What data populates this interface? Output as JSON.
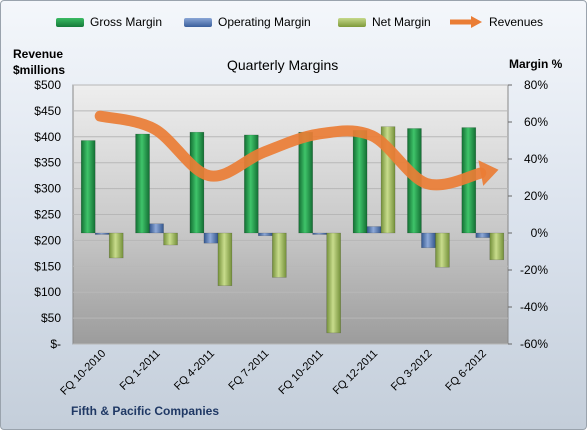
{
  "chart_data": {
    "type": "bar",
    "title": "Quarterly Margins",
    "categories": [
      "FQ 10-2010",
      "FQ 1-2011",
      "FQ 4-2011",
      "FQ 7-2011",
      "FQ 10-2011",
      "FQ 12-2011",
      "FQ 3-2012",
      "FQ 6-2012"
    ],
    "series": [
      {
        "name": "Gross Margin",
        "axis": "right",
        "color": "#1e8c45",
        "values": [
          50,
          53.5,
          54.5,
          53,
          54.5,
          55.5,
          56.5,
          57
        ]
      },
      {
        "name": "Operating Margin",
        "axis": "right",
        "color": "#4a6fb0",
        "values": [
          -0.5,
          5,
          -5.5,
          -1.5,
          -0.5,
          3.5,
          -8,
          -2.5
        ]
      },
      {
        "name": "Net Margin",
        "axis": "right",
        "color": "#9bb550",
        "values": [
          -13.5,
          -6.5,
          -28.5,
          -24,
          -54,
          57.5,
          -18.5,
          -14.5
        ]
      },
      {
        "name": "Revenues",
        "axis": "left",
        "type": "line",
        "color": "#ea7d35",
        "values": [
          440,
          415,
          325,
          370,
          405,
          402,
          310,
          330
        ]
      }
    ],
    "y_left": {
      "label_line1": "Revenue",
      "label_line2": "$millions",
      "ylim": [
        0,
        500
      ],
      "ticks": [
        "$-",
        "$50",
        "$100",
        "$150",
        "$200",
        "$250",
        "$300",
        "$350",
        "$400",
        "$450",
        "$500"
      ]
    },
    "y_right": {
      "label": "Margin %",
      "ylim": [
        -60,
        80
      ],
      "ticks": [
        "-60%",
        "-40%",
        "-20%",
        "0%",
        "20%",
        "40%",
        "60%",
        "80%"
      ]
    },
    "grid": true,
    "legend_position": "top",
    "footer": "Fifth & Pacific Companies"
  },
  "legend": {
    "gross": "Gross Margin",
    "operating": "Operating Margin",
    "net": "Net Margin",
    "revenues": "Revenues"
  },
  "colors": {
    "gross": "#1e8c45",
    "operating": "#4a6fb0",
    "net": "#9bb550",
    "revenues": "#ea7d35"
  }
}
